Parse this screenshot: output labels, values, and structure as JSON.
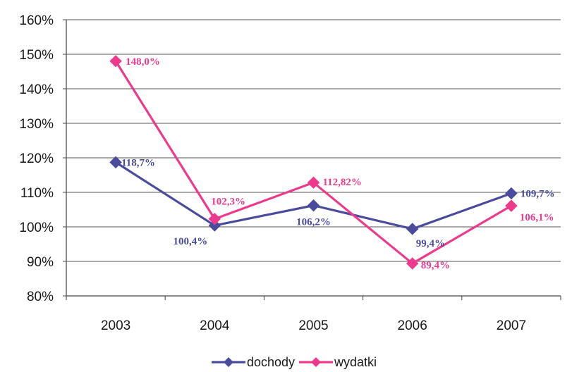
{
  "chart_data": {
    "type": "line",
    "categories": [
      "2003",
      "2004",
      "2005",
      "2006",
      "2007"
    ],
    "ylim": [
      80,
      160
    ],
    "yticks": [
      80,
      90,
      100,
      110,
      120,
      130,
      140,
      150,
      160
    ],
    "ytick_labels": [
      "80%",
      "90%",
      "100%",
      "110%",
      "120%",
      "130%",
      "140%",
      "150%",
      "160%"
    ],
    "grid": true,
    "legend_position": "bottom",
    "series": [
      {
        "name": "dochody",
        "color": "#4b4b9e",
        "marker": "diamond",
        "values": [
          118.7,
          100.4,
          106.2,
          99.4,
          109.7
        ],
        "labels": [
          "118,7%",
          "100,4%",
          "106,2%",
          "99,4%",
          "109,7%"
        ]
      },
      {
        "name": "wydatki",
        "color": "#ee3a8c",
        "marker": "diamond",
        "values": [
          148.0,
          102.3,
          112.82,
          89.4,
          106.1
        ],
        "labels": [
          "148,0%",
          "102,3%",
          "112,82%",
          "89,4%",
          "106,1%"
        ]
      }
    ]
  }
}
